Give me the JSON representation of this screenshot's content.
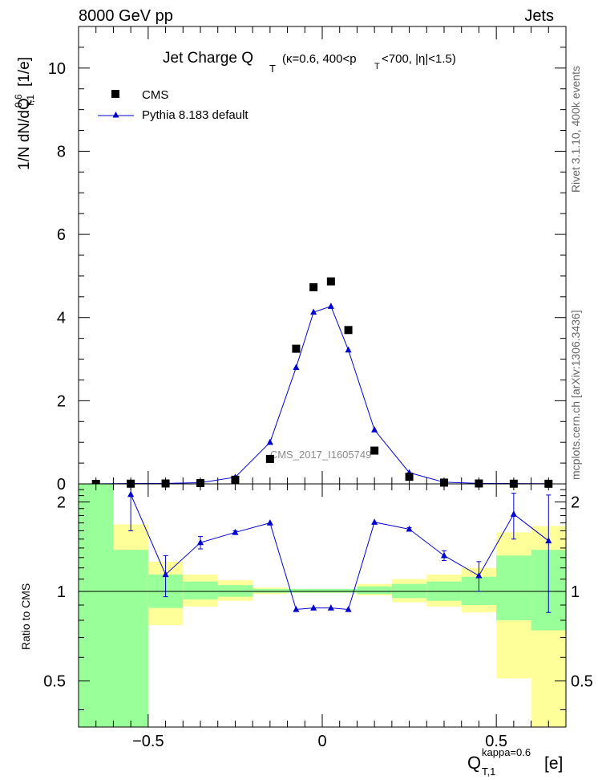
{
  "header": {
    "energy_label": "8000 GeV pp",
    "process_label": "Jets",
    "title_main": "Jet Charge Q",
    "title_sub": "T",
    "title_cuts": "(κ=0.6, 400<p",
    "title_cuts_sub": "T",
    "title_cuts_end": "<700, |η|<1.5)"
  },
  "side_labels": {
    "rivet": "Rivet 3.1.10,  400k events",
    "mcplots": "mcplots.cern.ch [arXiv:1306.3436]"
  },
  "watermark": "CMS_2017_I1605749",
  "legend": {
    "data_label": "CMS",
    "mc_label": "Pythia 8.183 default"
  },
  "axes": {
    "main_ylabel_prefix": "1/N dN/dQ",
    "main_ylabel_sup": "0.6",
    "main_ylabel_sub": "T,1",
    "main_ylabel_unit": "[1/e]",
    "ratio_ylabel": "Ratio to CMS",
    "xlabel_main": "Q",
    "xlabel_sup": "kappa=0.6",
    "xlabel_sub": "T,1",
    "xlabel_unit": "[e]"
  },
  "colors": {
    "mc": "#0000cc",
    "band_inner": "#99ff99",
    "band_outer": "#ffff99",
    "data": "#000000"
  },
  "chart_data": {
    "type": "scatter",
    "x_range": [
      -0.7,
      0.7
    ],
    "main_ylim": [
      0,
      11
    ],
    "main_yticks": [
      0,
      2,
      4,
      6,
      8,
      10
    ],
    "ratio_ylim": [
      0.35,
      2.3
    ],
    "ratio_yticks": [
      0.5,
      1,
      2
    ],
    "xticks": [
      -0.5,
      0,
      0.5
    ],
    "xtick_labels": [
      "−0.5",
      "0",
      "0.5"
    ],
    "bins": [
      {
        "lo": -0.7,
        "hi": -0.6,
        "x": -0.65,
        "cms": 0.0,
        "mc": 0.0,
        "ratio": null,
        "ratio_err": 0,
        "inner": [
          0.3,
          2.3
        ],
        "outer": [
          0.3,
          2.3
        ]
      },
      {
        "lo": -0.6,
        "hi": -0.5,
        "x": -0.55,
        "cms": 0.005,
        "mc": 0.01,
        "ratio": 2.12,
        "ratio_err": 0.52,
        "inner": [
          0.3,
          1.38
        ],
        "outer": [
          0.74,
          1.68
        ]
      },
      {
        "lo": -0.5,
        "hi": -0.4,
        "x": -0.45,
        "cms": 0.01,
        "mc": 0.012,
        "ratio": 1.14,
        "ratio_err": 0.18,
        "inner": [
          0.88,
          1.14
        ],
        "outer": [
          0.77,
          1.26
        ]
      },
      {
        "lo": -0.4,
        "hi": -0.3,
        "x": -0.35,
        "cms": 0.02,
        "mc": 0.03,
        "ratio": 1.46,
        "ratio_err": 0.07,
        "inner": [
          0.94,
          1.08
        ],
        "outer": [
          0.89,
          1.14
        ]
      },
      {
        "lo": -0.3,
        "hi": -0.2,
        "x": -0.25,
        "cms": 0.1,
        "mc": 0.16,
        "ratio": 1.58,
        "ratio_err": 0.02,
        "inner": [
          0.96,
          1.05
        ],
        "outer": [
          0.93,
          1.09
        ]
      },
      {
        "lo": -0.2,
        "hi": -0.1,
        "x": -0.15,
        "cms": 0.6,
        "mc": 1.0,
        "ratio": 1.7,
        "ratio_err": 0.0,
        "inner": [
          0.99,
          1.02
        ],
        "outer": [
          0.98,
          1.03
        ]
      },
      {
        "lo": -0.1,
        "hi": -0.05,
        "x": -0.075,
        "cms": 3.25,
        "mc": 2.8,
        "ratio": 0.87,
        "ratio_err": 0.0,
        "inner": [
          0.99,
          1.02
        ],
        "outer": [
          0.99,
          1.02
        ]
      },
      {
        "lo": -0.05,
        "hi": 0.0,
        "x": -0.025,
        "cms": 4.73,
        "mc": 4.13,
        "ratio": 0.88,
        "ratio_err": 0.0,
        "inner": [
          0.99,
          1.02
        ],
        "outer": [
          0.99,
          1.02
        ]
      },
      {
        "lo": 0.0,
        "hi": 0.05,
        "x": 0.025,
        "cms": 4.87,
        "mc": 4.27,
        "ratio": 0.88,
        "ratio_err": 0.0,
        "inner": [
          0.99,
          1.02
        ],
        "outer": [
          0.99,
          1.02
        ]
      },
      {
        "lo": 0.05,
        "hi": 0.1,
        "x": 0.075,
        "cms": 3.7,
        "mc": 3.22,
        "ratio": 0.87,
        "ratio_err": 0.0,
        "inner": [
          0.99,
          1.02
        ],
        "outer": [
          0.99,
          1.02
        ]
      },
      {
        "lo": 0.1,
        "hi": 0.2,
        "x": 0.15,
        "cms": 0.8,
        "mc": 1.3,
        "ratio": 1.71,
        "ratio_err": 0.0,
        "inner": [
          0.98,
          1.04
        ],
        "outer": [
          0.97,
          1.06
        ]
      },
      {
        "lo": 0.2,
        "hi": 0.3,
        "x": 0.25,
        "cms": 0.17,
        "mc": 0.27,
        "ratio": 1.62,
        "ratio_err": 0.02,
        "inner": [
          0.95,
          1.06
        ],
        "outer": [
          0.92,
          1.1
        ]
      },
      {
        "lo": 0.3,
        "hi": 0.4,
        "x": 0.35,
        "cms": 0.03,
        "mc": 0.04,
        "ratio": 1.32,
        "ratio_err": 0.05,
        "inner": [
          0.93,
          1.08
        ],
        "outer": [
          0.89,
          1.14
        ]
      },
      {
        "lo": 0.4,
        "hi": 0.5,
        "x": 0.45,
        "cms": 0.01,
        "mc": 0.012,
        "ratio": 1.13,
        "ratio_err": 0.13,
        "inner": [
          0.9,
          1.12
        ],
        "outer": [
          0.85,
          1.2
        ]
      },
      {
        "lo": 0.5,
        "hi": 0.6,
        "x": 0.55,
        "cms": 0.005,
        "mc": 0.008,
        "ratio": 1.82,
        "ratio_err": 0.32,
        "inner": [
          0.8,
          1.32
        ],
        "outer": [
          0.51,
          1.58
        ]
      },
      {
        "lo": 0.6,
        "hi": 0.7,
        "x": 0.65,
        "cms": 0.003,
        "mc": 0.004,
        "ratio": 1.48,
        "ratio_err": 0.63,
        "inner": [
          0.74,
          1.38
        ],
        "outer": [
          0.35,
          1.66
        ]
      }
    ]
  }
}
